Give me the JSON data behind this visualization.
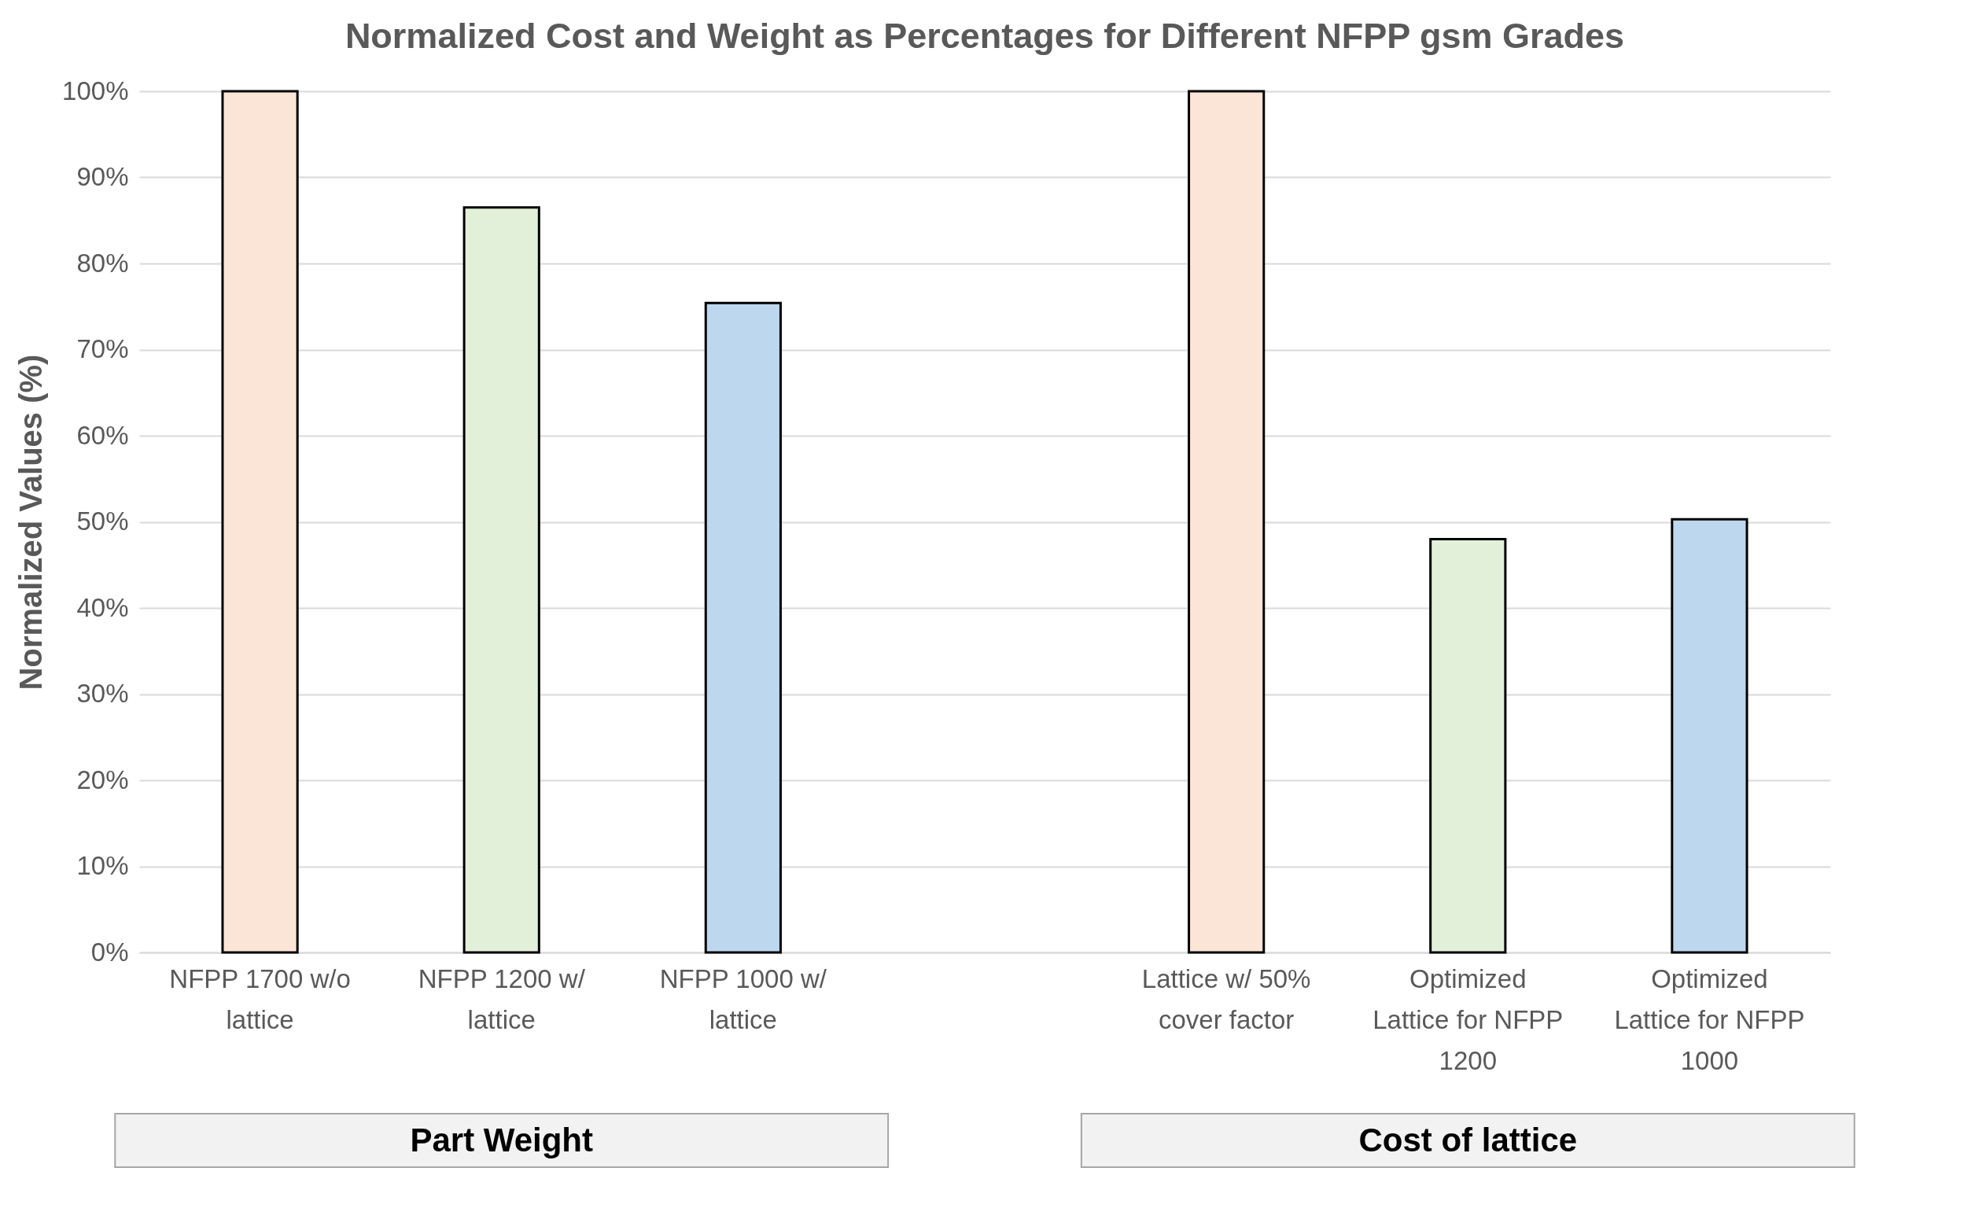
{
  "chart_data": {
    "type": "bar",
    "title": "Normalized Cost and Weight as Percentages for Different NFPP gsm Grades",
    "ylabel": "Normalized Values (%)",
    "categories": [
      "NFPP 1700 w/o lattice",
      "NFPP 1200 w/ lattice",
      "NFPP 1000 w/ lattice",
      null,
      "Lattice w/ 50% cover factor",
      "Optimized Lattice for NFPP 1200",
      "Optimized Lattice for NFPP 1000"
    ],
    "values": [
      100,
      86.5,
      75.4,
      null,
      100,
      48.0,
      50.3
    ],
    "colors": [
      "#fbe5d6",
      "#e2f0d9",
      "#bdd7ee",
      null,
      "#fbe5d6",
      "#e2f0d9",
      "#bdd7ee"
    ],
    "ylim": [
      0,
      100
    ],
    "yticks": [
      {
        "value": 0,
        "label": "0%"
      },
      {
        "value": 10,
        "label": "10%"
      },
      {
        "value": 20,
        "label": "20%"
      },
      {
        "value": 30,
        "label": "30%"
      },
      {
        "value": 40,
        "label": "40%"
      },
      {
        "value": 50,
        "label": "50%"
      },
      {
        "value": 60,
        "label": "60%"
      },
      {
        "value": 70,
        "label": "70%"
      },
      {
        "value": 80,
        "label": "80%"
      },
      {
        "value": 90,
        "label": "90%"
      },
      {
        "value": 100,
        "label": "100%"
      }
    ],
    "grid": "y",
    "annotations": [
      "Part Weight",
      "Cost of lattice"
    ]
  }
}
